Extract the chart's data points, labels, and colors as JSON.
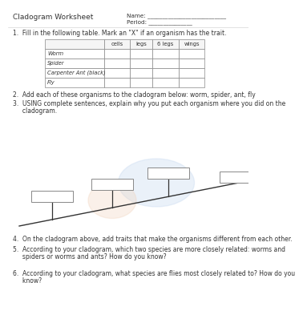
{
  "title": "Cladogram Worksheet",
  "name_label": "Name: ___________________________",
  "period_label": "Period: _______________",
  "q1_text": "1.  Fill in the following table. Mark an \"X\" if an organism has the trait.",
  "table_headers": [
    "",
    "cells",
    "legs",
    "6 legs",
    "wings"
  ],
  "table_rows": [
    "Worm",
    "Spider",
    "Carpenter Ant (black)",
    "Fly"
  ],
  "q2_text": "2.  Add each of these organisms to the cladogram below: worm, spider, ant, fly",
  "q3_text_1": "3.  USING complete sentences, explain why you put each organism where you did on the",
  "q3_text_2": "     cladogram.",
  "q4_text": "4.  On the cladogram above, add traits that make the organisms different from each other.",
  "q5_text_1": "5.  According to your cladogram, which two species are more closely related: worms and",
  "q5_text_2": "     spiders or worms and ants? How do you know?",
  "q6_text_1": "6.  According to your cladogram, what species are flies most closely related to? How do you",
  "q6_text_2": "     know?",
  "bg_color": "#ffffff",
  "text_color": "#333333",
  "table_border_color": "#888888",
  "box_color": "#ffffff",
  "box_border_color": "#888888",
  "line_color": "#333333",
  "watermark_blue": "#c5d8f0",
  "watermark_orange": "#f0d0b8",
  "font_size_title": 6.5,
  "font_size_body": 5.5,
  "font_size_table": 5.2
}
